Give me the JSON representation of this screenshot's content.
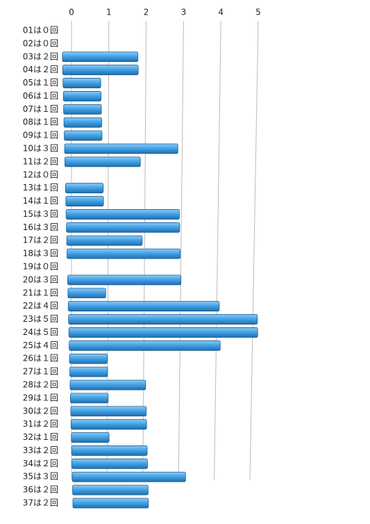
{
  "chart_data": {
    "type": "bar",
    "orientation": "horizontal",
    "categories": [
      "01は０回",
      "02は０回",
      "03は２回",
      "04は２回",
      "05は１回",
      "06は１回",
      "07は１回",
      "08は１回",
      "09は１回",
      "10は３回",
      "11は２回",
      "12は０回",
      "13は１回",
      "14は１回",
      "15は３回",
      "16は３回",
      "17は２回",
      "18は３回",
      "19は０回",
      "20は３回",
      "21は１回",
      "22は４回",
      "23は５回",
      "24は５回",
      "25は４回",
      "26は１回",
      "27は１回",
      "28は２回",
      "29は１回",
      "30は２回",
      "31は２回",
      "32は１回",
      "33は２回",
      "34は２回",
      "35は３回",
      "36は２回",
      "37は２回"
    ],
    "values": [
      0,
      0,
      2,
      2,
      1,
      1,
      1,
      1,
      1,
      3,
      2,
      0,
      1,
      1,
      3,
      3,
      2,
      3,
      0,
      3,
      1,
      4,
      5,
      5,
      4,
      1,
      1,
      2,
      1,
      2,
      2,
      1,
      2,
      2,
      3,
      2,
      2
    ],
    "color": "#3f9fe0",
    "xlim": [
      0,
      5
    ],
    "xticks": [
      0,
      1,
      2,
      3,
      4,
      5
    ],
    "grid": true
  }
}
